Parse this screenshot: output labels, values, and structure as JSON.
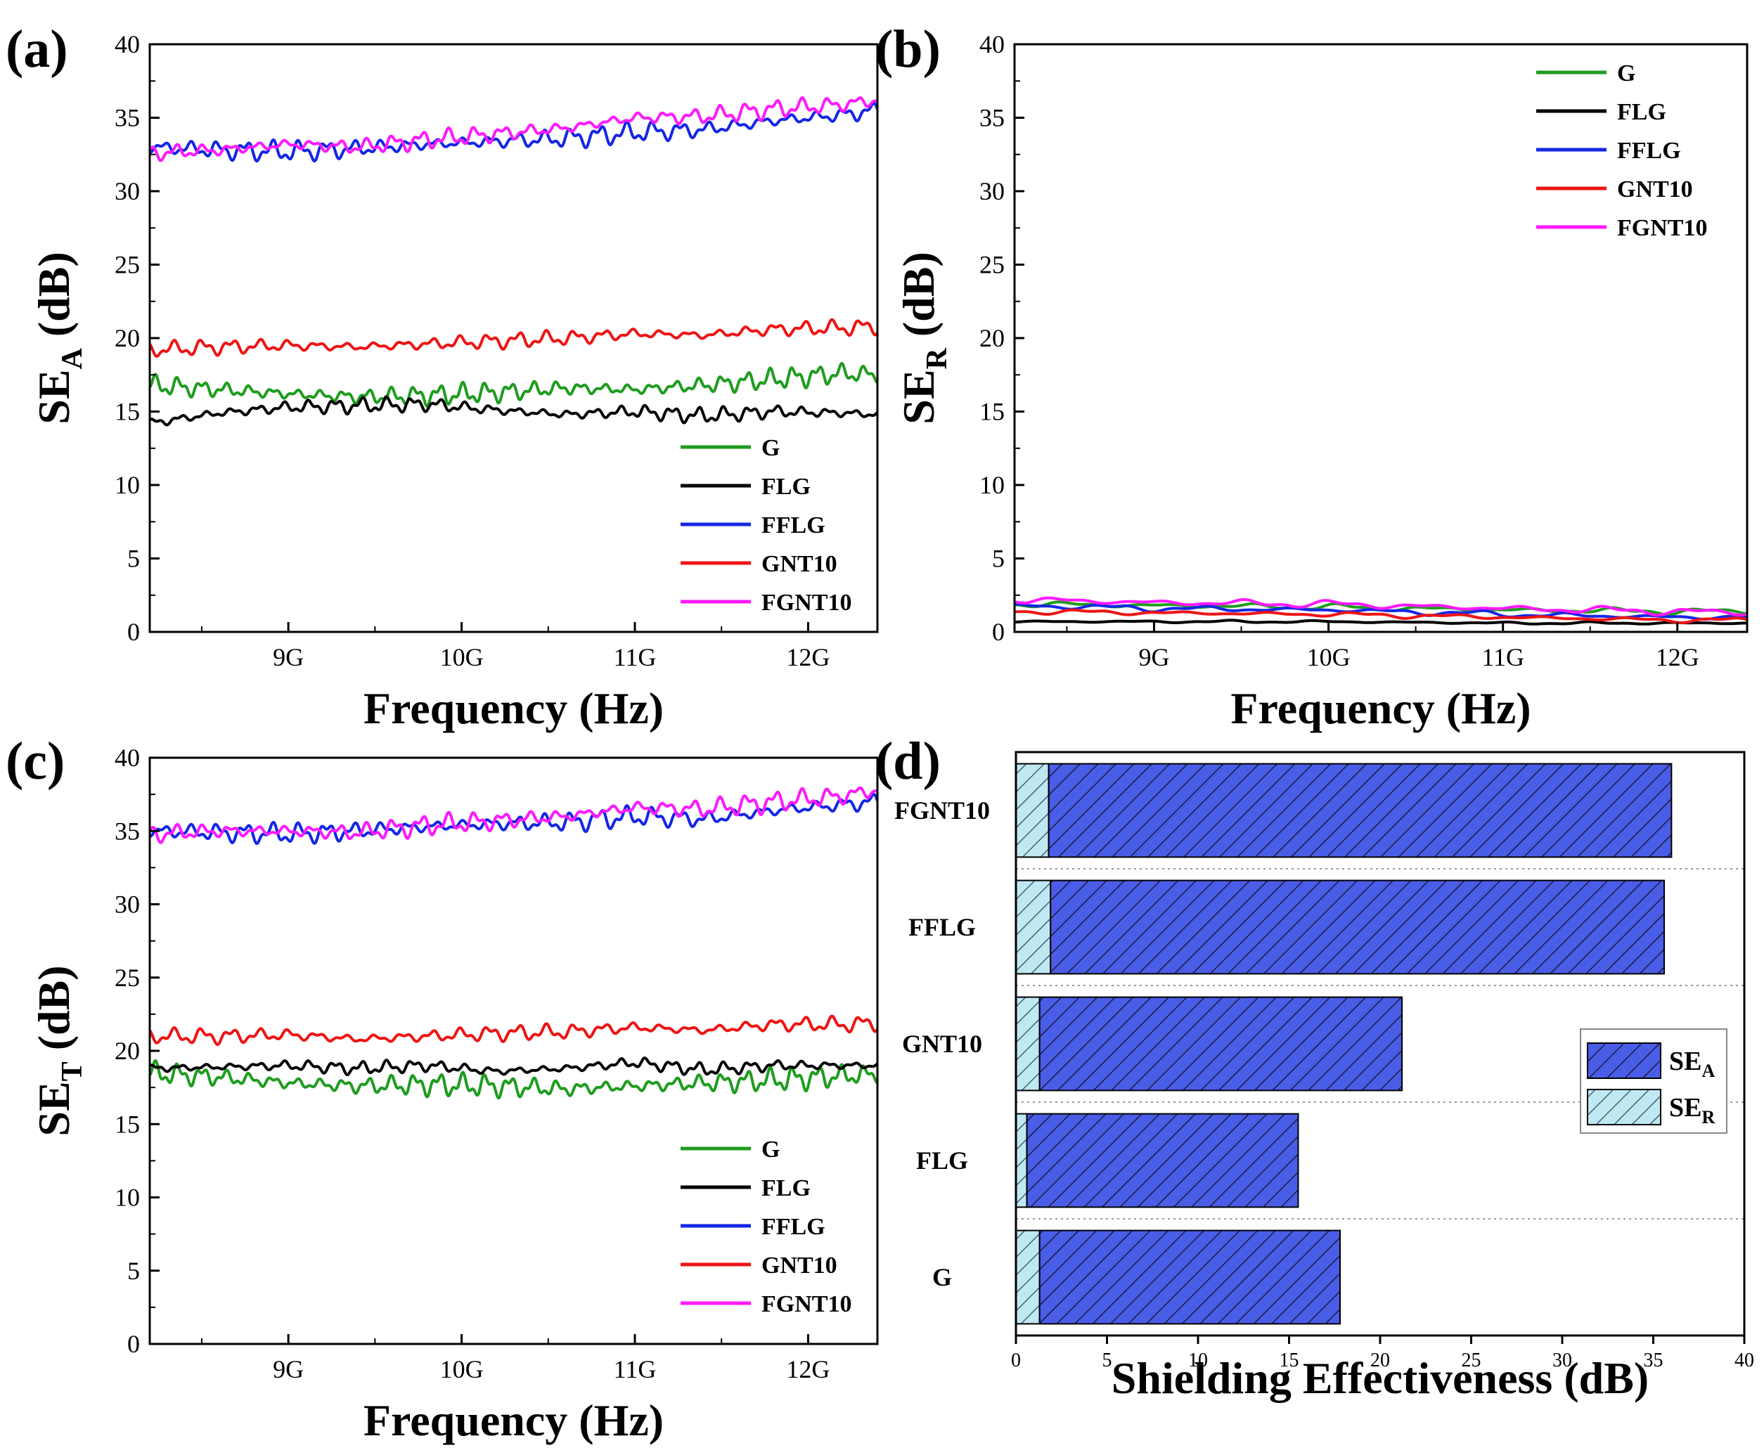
{
  "chart_data": [
    {
      "panel": "(a)",
      "type": "line",
      "xlabel": "Frequency (Hz)",
      "ylabel_main": "SE",
      "ylabel_sub": "A",
      "ylabel_tail": " (dB)",
      "xlim": [
        8.2,
        12.4
      ],
      "ylim": [
        0,
        40
      ],
      "xticks": [
        {
          "v": 9,
          "label": "9G"
        },
        {
          "v": 10,
          "label": "10G"
        },
        {
          "v": 11,
          "label": "11G"
        },
        {
          "v": 12,
          "label": "12G"
        }
      ],
      "yticks": [
        0,
        5,
        10,
        15,
        20,
        25,
        30,
        35,
        40
      ],
      "legend_position": "bottom-right",
      "series": [
        {
          "name": "G",
          "color": "#1f9c1f",
          "x": [
            8.2,
            8.6,
            9.0,
            9.4,
            9.8,
            10.2,
            10.6,
            11.0,
            11.4,
            11.8,
            12.2,
            12.4
          ],
          "y": [
            16.8,
            16.5,
            16.2,
            16.0,
            16.1,
            16.3,
            16.6,
            16.5,
            16.8,
            17.2,
            17.6,
            17.5
          ],
          "amp": 0.8,
          "freq": 46
        },
        {
          "name": "FLG",
          "color": "#000000",
          "x": [
            8.2,
            8.6,
            9.0,
            9.4,
            9.8,
            10.2,
            10.6,
            11.0,
            11.4,
            11.8,
            12.2,
            12.4
          ],
          "y": [
            14.2,
            14.9,
            15.3,
            15.4,
            15.5,
            15.1,
            14.8,
            15.0,
            14.7,
            15.0,
            14.9,
            14.8
          ],
          "amp": 0.6,
          "freq": 42
        },
        {
          "name": "FFLG",
          "color": "#1426e6",
          "x": [
            8.2,
            8.6,
            9.0,
            9.4,
            9.8,
            10.2,
            10.6,
            11.0,
            11.4,
            11.8,
            12.2,
            12.4
          ],
          "y": [
            33.0,
            32.8,
            32.7,
            32.9,
            33.2,
            33.4,
            33.6,
            34.0,
            34.2,
            34.8,
            35.2,
            35.5
          ],
          "amp": 0.8,
          "freq": 40
        },
        {
          "name": "GNT10",
          "color": "#ee1414",
          "x": [
            8.2,
            8.6,
            9.0,
            9.4,
            9.8,
            10.2,
            10.6,
            11.0,
            11.4,
            11.8,
            12.2,
            12.4
          ],
          "y": [
            19.2,
            19.4,
            19.5,
            19.4,
            19.6,
            19.8,
            20.0,
            20.3,
            20.2,
            20.6,
            20.7,
            20.8
          ],
          "amp": 0.6,
          "freq": 38
        },
        {
          "name": "FGNT10",
          "color": "#ff19ff",
          "x": [
            8.2,
            8.6,
            9.0,
            9.4,
            9.8,
            10.2,
            10.6,
            11.0,
            11.4,
            11.8,
            12.2,
            12.4
          ],
          "y": [
            32.6,
            32.8,
            33.2,
            33.0,
            33.5,
            33.9,
            34.3,
            35.0,
            35.1,
            35.6,
            35.9,
            36.2
          ],
          "amp": 0.7,
          "freq": 40
        }
      ]
    },
    {
      "panel": "(b)",
      "type": "line",
      "xlabel": "Frequency (Hz)",
      "ylabel_main": "SE",
      "ylabel_sub": "R",
      "ylabel_tail": " (dB)",
      "xlim": [
        8.2,
        12.4
      ],
      "ylim": [
        0,
        40
      ],
      "xticks": [
        {
          "v": 9,
          "label": "9G"
        },
        {
          "v": 10,
          "label": "10G"
        },
        {
          "v": 11,
          "label": "11G"
        },
        {
          "v": 12,
          "label": "12G"
        }
      ],
      "yticks": [
        0,
        5,
        10,
        15,
        20,
        25,
        30,
        35,
        40
      ],
      "legend_position": "top-right",
      "series": [
        {
          "name": "G",
          "color": "#1f9c1f",
          "x": [
            8.2,
            9.0,
            10.0,
            11.0,
            12.0,
            12.4
          ],
          "y": [
            1.9,
            1.8,
            1.7,
            1.5,
            1.4,
            1.4
          ],
          "amp": 0.25,
          "freq": 12
        },
        {
          "name": "FLG",
          "color": "#000000",
          "x": [
            8.2,
            9.0,
            10.0,
            11.0,
            12.0,
            12.4
          ],
          "y": [
            0.7,
            0.7,
            0.7,
            0.6,
            0.6,
            0.6
          ],
          "amp": 0.1,
          "freq": 12
        },
        {
          "name": "FFLG",
          "color": "#1426e6",
          "x": [
            8.2,
            9.0,
            10.0,
            11.0,
            12.0,
            12.4
          ],
          "y": [
            1.8,
            1.6,
            1.5,
            1.2,
            1.0,
            1.0
          ],
          "amp": 0.25,
          "freq": 12
        },
        {
          "name": "GNT10",
          "color": "#ee1414",
          "x": [
            8.2,
            9.0,
            10.0,
            11.0,
            12.0,
            12.4
          ],
          "y": [
            1.4,
            1.3,
            1.2,
            1.0,
            0.8,
            0.8
          ],
          "amp": 0.2,
          "freq": 12
        },
        {
          "name": "FGNT10",
          "color": "#ff19ff",
          "x": [
            8.2,
            9.0,
            10.0,
            11.0,
            12.0,
            12.4
          ],
          "y": [
            2.2,
            2.0,
            1.9,
            1.6,
            1.4,
            1.3
          ],
          "amp": 0.3,
          "freq": 12
        }
      ]
    },
    {
      "panel": "(c)",
      "type": "line",
      "xlabel": "Frequency (Hz)",
      "ylabel_main": "SE",
      "ylabel_sub": "T",
      "ylabel_tail": " (dB)",
      "xlim": [
        8.2,
        12.4
      ],
      "ylim": [
        0,
        40
      ],
      "xticks": [
        {
          "v": 9,
          "label": "9G"
        },
        {
          "v": 10,
          "label": "10G"
        },
        {
          "v": 11,
          "label": "11G"
        },
        {
          "v": 12,
          "label": "12G"
        }
      ],
      "yticks": [
        0,
        5,
        10,
        15,
        20,
        25,
        30,
        35,
        40
      ],
      "legend_position": "bottom-right",
      "series": [
        {
          "name": "G",
          "color": "#1f9c1f",
          "x": [
            8.2,
            8.6,
            9.0,
            9.4,
            9.8,
            10.2,
            10.6,
            11.0,
            11.4,
            11.8,
            12.2,
            12.4
          ],
          "y": [
            18.5,
            18.2,
            17.8,
            17.6,
            17.7,
            17.6,
            17.4,
            17.6,
            17.8,
            18.0,
            18.3,
            18.4
          ],
          "amp": 0.9,
          "freq": 46
        },
        {
          "name": "FLG",
          "color": "#000000",
          "x": [
            8.2,
            8.6,
            9.0,
            9.4,
            9.8,
            10.2,
            10.6,
            11.0,
            11.4,
            11.8,
            12.2,
            12.4
          ],
          "y": [
            18.8,
            18.9,
            19.0,
            18.8,
            19.0,
            18.6,
            18.8,
            19.2,
            18.7,
            19.0,
            19.0,
            19.0
          ],
          "amp": 0.5,
          "freq": 42
        },
        {
          "name": "FFLG",
          "color": "#1426e6",
          "x": [
            8.2,
            8.6,
            9.0,
            9.4,
            9.8,
            10.2,
            10.6,
            11.0,
            11.4,
            11.8,
            12.2,
            12.4
          ],
          "y": [
            35.0,
            34.9,
            34.8,
            35.0,
            35.3,
            35.5,
            35.6,
            36.0,
            35.8,
            36.4,
            36.8,
            37.0
          ],
          "amp": 0.8,
          "freq": 40
        },
        {
          "name": "GNT10",
          "color": "#ee1414",
          "x": [
            8.2,
            8.6,
            9.0,
            9.4,
            9.8,
            10.2,
            10.6,
            11.0,
            11.4,
            11.8,
            12.2,
            12.4
          ],
          "y": [
            21.0,
            21.0,
            21.1,
            20.8,
            21.0,
            21.2,
            21.3,
            21.6,
            21.4,
            21.8,
            21.8,
            21.9
          ],
          "amp": 0.6,
          "freq": 38
        },
        {
          "name": "FGNT10",
          "color": "#ff19ff",
          "x": [
            8.2,
            8.6,
            9.0,
            9.4,
            9.8,
            10.2,
            10.6,
            11.0,
            11.4,
            11.8,
            12.2,
            12.4
          ],
          "y": [
            34.8,
            35.0,
            35.0,
            34.9,
            35.4,
            35.7,
            36.0,
            36.6,
            36.5,
            37.0,
            37.4,
            37.8
          ],
          "amp": 0.8,
          "freq": 40
        }
      ]
    },
    {
      "panel": "(d)",
      "type": "bar",
      "orientation": "horizontal",
      "stacked": true,
      "xlabel": "Shielding Effectiveness (dB)",
      "xlim": [
        0,
        40
      ],
      "xticks": [
        0,
        5,
        10,
        15,
        20,
        25,
        30,
        35,
        40
      ],
      "categories": [
        "FGNT10",
        "FFLG",
        "GNT10",
        "FLG",
        "G"
      ],
      "legend_position": "right",
      "series": [
        {
          "name_main": "SE",
          "name_sub": "R",
          "pattern": "light-cyan-hatch",
          "values": [
            1.8,
            1.9,
            1.3,
            0.6,
            1.3
          ]
        },
        {
          "name_main": "SE",
          "name_sub": "A",
          "pattern": "blue-hatch",
          "values": [
            34.2,
            33.7,
            19.9,
            14.9,
            16.5
          ]
        }
      ]
    }
  ]
}
